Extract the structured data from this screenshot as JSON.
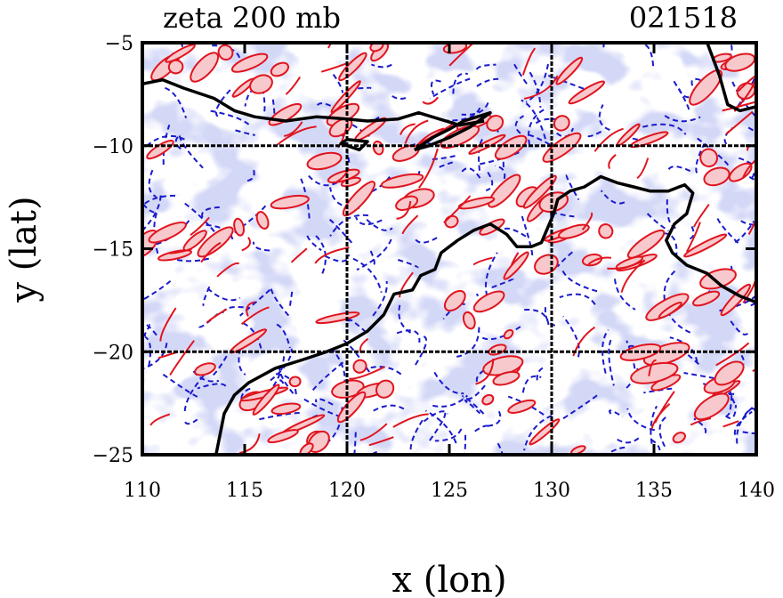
{
  "chart_data": {
    "type": "contour",
    "title_left": "zeta 200 mb",
    "title_right": "021518",
    "xlabel": "x (lon)",
    "ylabel": "y (lat)",
    "xlim": [
      110,
      140
    ],
    "ylim": [
      -25,
      -5
    ],
    "xticks": [
      110,
      115,
      120,
      125,
      130,
      135,
      140
    ],
    "yticks": [
      -5,
      -10,
      -15,
      -20,
      -25
    ],
    "xtick_labels": [
      "110",
      "115",
      "120",
      "125",
      "130",
      "135",
      "140"
    ],
    "ytick_labels": [
      "−5",
      "−10",
      "−15",
      "−20",
      "−25"
    ],
    "grid_lon": [
      120,
      130
    ],
    "grid_lat": [
      -10,
      -20
    ],
    "colors": {
      "negative_fill": "#aab0ee",
      "negative_line": "#1a1acc",
      "positive_fill": "#f7c8cc",
      "positive_line": "#e0141e",
      "coastline": "#000000",
      "grid": "#000000"
    },
    "coastline": [
      [
        [
          110.0,
          -7.0
        ],
        [
          111.0,
          -6.8
        ],
        [
          112.0,
          -7.2
        ],
        [
          113.5,
          -7.7
        ],
        [
          114.5,
          -8.3
        ],
        [
          115.5,
          -8.6
        ],
        [
          117.0,
          -8.8
        ],
        [
          118.5,
          -8.6
        ],
        [
          120.0,
          -8.7
        ],
        [
          121.0,
          -8.8
        ],
        [
          122.5,
          -8.7
        ],
        [
          123.5,
          -8.4
        ],
        [
          124.5,
          -8.7
        ],
        [
          125.5,
          -9.0
        ],
        [
          126.7,
          -8.8
        ]
      ],
      [
        [
          120.0,
          -9.7
        ],
        [
          121.0,
          -9.8
        ],
        [
          120.6,
          -10.2
        ],
        [
          119.7,
          -9.9
        ],
        [
          120.0,
          -9.7
        ]
      ],
      [
        [
          123.3,
          -10.2
        ],
        [
          124.2,
          -9.6
        ],
        [
          125.0,
          -9.2
        ],
        [
          125.7,
          -8.8
        ],
        [
          127.0,
          -8.4
        ],
        [
          126.0,
          -9.1
        ],
        [
          125.0,
          -9.6
        ],
        [
          124.0,
          -10.0
        ],
        [
          123.3,
          -10.2
        ]
      ],
      [
        [
          113.6,
          -25.0
        ],
        [
          113.8,
          -24.0
        ],
        [
          114.0,
          -23.0
        ],
        [
          114.5,
          -22.1
        ],
        [
          115.2,
          -21.5
        ],
        [
          116.5,
          -20.8
        ],
        [
          117.8,
          -20.4
        ],
        [
          119.0,
          -20.0
        ],
        [
          120.0,
          -19.6
        ],
        [
          121.0,
          -19.0
        ],
        [
          121.8,
          -18.2
        ],
        [
          122.3,
          -17.2
        ],
        [
          123.2,
          -17.0
        ],
        [
          123.6,
          -16.3
        ],
        [
          124.3,
          -16.0
        ],
        [
          124.6,
          -15.2
        ],
        [
          125.4,
          -14.6
        ],
        [
          126.2,
          -14.1
        ],
        [
          127.0,
          -13.8
        ],
        [
          127.8,
          -14.3
        ],
        [
          128.3,
          -14.9
        ],
        [
          129.0,
          -14.9
        ],
        [
          129.5,
          -14.7
        ],
        [
          130.1,
          -13.3
        ],
        [
          130.3,
          -12.6
        ],
        [
          130.9,
          -12.2
        ],
        [
          131.6,
          -12.0
        ],
        [
          132.4,
          -11.5
        ],
        [
          133.2,
          -11.8
        ],
        [
          134.0,
          -12.0
        ],
        [
          134.8,
          -12.2
        ],
        [
          135.7,
          -12.2
        ],
        [
          136.5,
          -11.9
        ],
        [
          136.9,
          -12.3
        ],
        [
          136.6,
          -13.3
        ],
        [
          136.0,
          -13.8
        ],
        [
          135.6,
          -14.6
        ],
        [
          135.9,
          -15.2
        ],
        [
          136.6,
          -15.8
        ],
        [
          137.6,
          -16.2
        ],
        [
          138.3,
          -16.8
        ],
        [
          139.2,
          -17.3
        ],
        [
          140.0,
          -17.6
        ]
      ],
      [
        [
          137.6,
          -5.0
        ],
        [
          138.2,
          -6.6
        ],
        [
          138.6,
          -8.0
        ],
        [
          139.2,
          -8.3
        ],
        [
          140.0,
          -8.1
        ]
      ]
    ]
  }
}
